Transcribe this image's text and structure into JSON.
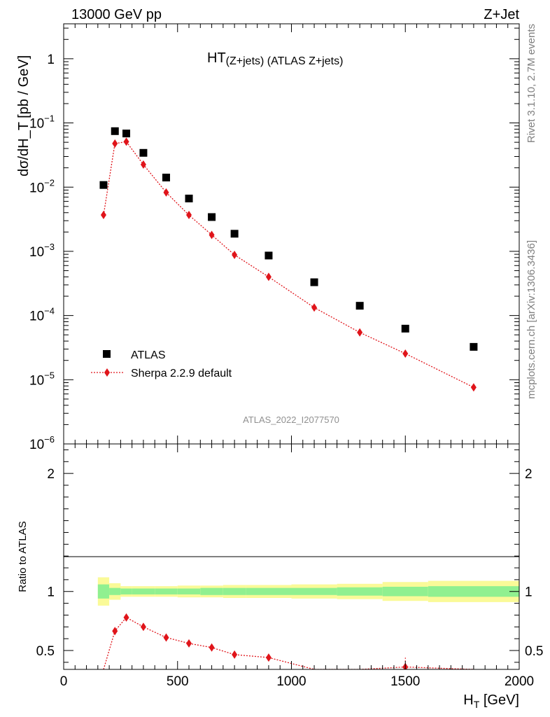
{
  "header": {
    "left": "13000 GeV pp",
    "right": "Z+Jet"
  },
  "side_labels": {
    "rivet": "Rivet 3.1.10,  2.7M events",
    "mcplots": "mcplots.cern.ch [arXiv:1306.3436]"
  },
  "chart_data": [
    {
      "type": "scatter",
      "title_main": "HT",
      "title_sub": "(Z+jets) (ATLAS Z+jets)",
      "ylabel": "dσ/dH_T [pb / GeV]",
      "yscale": "log",
      "ylim": [
        1e-06,
        3.5
      ],
      "xlim": [
        0,
        2000
      ],
      "y_tick_labels": [
        {
          "base": "10",
          "exp": "−6",
          "value": 1e-06
        },
        {
          "base": "10",
          "exp": "−5",
          "value": 1e-05
        },
        {
          "base": "10",
          "exp": "−4",
          "value": 0.0001
        },
        {
          "base": "10",
          "exp": "−3",
          "value": 0.001
        },
        {
          "base": "10",
          "exp": "−2",
          "value": 0.01
        },
        {
          "base": "10",
          "exp": "−1",
          "value": 0.1
        },
        {
          "base": "1",
          "exp": "",
          "value": 1
        }
      ],
      "analysis_tag": "ATLAS_2022_I2077570",
      "legend": [
        {
          "label": "ATLAS",
          "marker": "square",
          "color": "#000000"
        },
        {
          "label": "Sherpa 2.2.9 default",
          "marker": "diamond",
          "color": "#e0141a",
          "line": "dotted"
        }
      ],
      "series": [
        {
          "name": "ATLAS",
          "x": [
            175,
            225,
            275,
            350,
            450,
            550,
            650,
            750,
            900,
            1100,
            1300,
            1500,
            1800
          ],
          "y": [
            0.0108,
            0.0745,
            0.0685,
            0.0342,
            0.0141,
            0.00665,
            0.00342,
            0.00188,
            0.00086,
            0.00033,
            0.000142,
            6.25e-05,
            3.25e-05
          ]
        },
        {
          "name": "Sherpa 2.2.9 default",
          "x": [
            175,
            225,
            275,
            350,
            450,
            550,
            650,
            750,
            900,
            1100,
            1300,
            1500,
            1800
          ],
          "y": [
            0.00368,
            0.0478,
            0.051,
            0.0225,
            0.00825,
            0.00368,
            0.0018,
            0.00088,
            0.0004,
            0.000133,
            5.45e-05,
            2.55e-05,
            7.6e-06
          ]
        }
      ]
    },
    {
      "type": "line",
      "ylabel": "Ratio to ATLAS",
      "xlabel_main": "H",
      "xlabel_sub": "T",
      "xlabel_unit": " [GeV]",
      "xlim": [
        0,
        2000
      ],
      "ylim": [
        0.34,
        2.25
      ],
      "x_tick_labels": [
        "0",
        "500",
        "1000",
        "1500",
        "2000"
      ],
      "y_tick_labels": [
        "0.5",
        "1",
        "2"
      ],
      "reference_band": {
        "bins": [
          [
            150,
            200
          ],
          [
            200,
            250
          ],
          [
            250,
            300
          ],
          [
            300,
            400
          ],
          [
            400,
            500
          ],
          [
            500,
            600
          ],
          [
            600,
            700
          ],
          [
            700,
            800
          ],
          [
            800,
            1000
          ],
          [
            1000,
            1200
          ],
          [
            1200,
            1400
          ],
          [
            1400,
            1600
          ],
          [
            1600,
            2000
          ]
        ],
        "stat_half_width": [
          0.06,
          0.03,
          0.025,
          0.025,
          0.025,
          0.025,
          0.03,
          0.03,
          0.03,
          0.03,
          0.035,
          0.04,
          0.045
        ],
        "total_half_width": [
          0.12,
          0.07,
          0.045,
          0.045,
          0.045,
          0.05,
          0.05,
          0.055,
          0.055,
          0.06,
          0.065,
          0.08,
          0.09
        ],
        "stat_color": "#90f090",
        "total_color": "#fafa98"
      },
      "series": [
        {
          "name": "Sherpa 2.2.9 default",
          "x": [
            175,
            225,
            275,
            350,
            450,
            550,
            650,
            750,
            900,
            1100,
            1300,
            1500,
            1800
          ],
          "y": [
            0.34,
            0.665,
            0.78,
            0.7,
            0.61,
            0.56,
            0.525,
            0.465,
            0.44,
            0.34,
            0.34,
            0.36,
            0.34
          ],
          "visible": [
            false,
            true,
            true,
            true,
            true,
            true,
            true,
            true,
            true,
            false,
            false,
            true,
            false
          ]
        }
      ]
    }
  ]
}
